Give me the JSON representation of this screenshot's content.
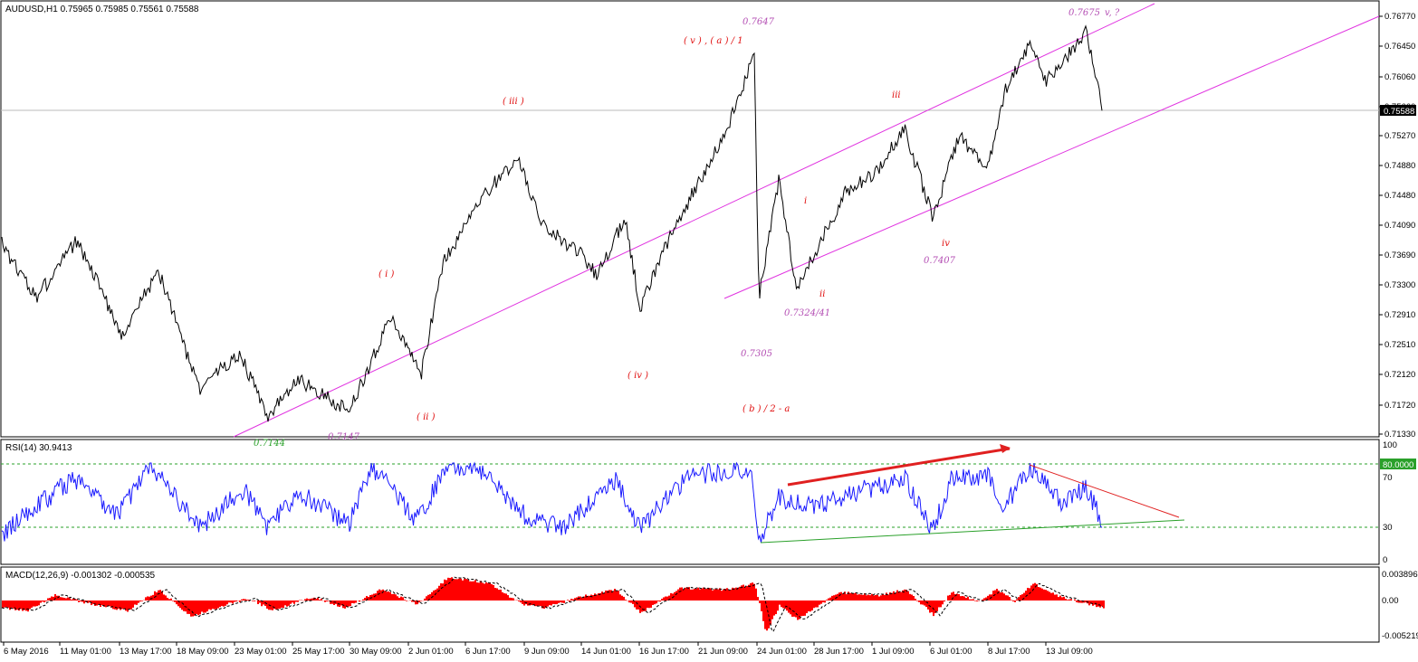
{
  "panels": {
    "price": {
      "title": "AUDUSD,H1  0.75965 0.75985 0.75561 0.75588",
      "current_price": "0.75588",
      "y_ticks": [
        "0.76770",
        "0.76450",
        "0.76060",
        "0.75660",
        "0.75270",
        "0.74880",
        "0.74480",
        "0.74090",
        "0.73690",
        "0.73300",
        "0.72910",
        "0.72510",
        "0.72120",
        "0.71720",
        "0.71330"
      ]
    },
    "rsi": {
      "title": "RSI(14) 30.9413",
      "level_label": "80.0000",
      "y_ticks": [
        "100",
        "70",
        "30",
        "0"
      ]
    },
    "macd": {
      "title": "MACD(12,26,9) -0.001302 -0.000535",
      "y_ticks": [
        "0.003896",
        "0.00",
        "-0.005219"
      ]
    }
  },
  "x_axis": {
    "labels": [
      "6 May 2016",
      "11 May 01:00",
      "13 May 17:00",
      "18 May 09:00",
      "23 May 01:00",
      "25 May 17:00",
      "30 May 09:00",
      "2 Jun 01:00",
      "6 Jun 17:00",
      "9 Jun 09:00",
      "14 Jun 01:00",
      "16 Jun 17:00",
      "21 Jun 09:00",
      "24 Jun 01:00",
      "28 Jun 17:00",
      "1 Jul 09:00",
      "6 Jul 01:00",
      "8 Jul 17:00",
      "13 Jul 09:00"
    ]
  },
  "annotations": {
    "labels": [
      {
        "text": "0.7647",
        "color": "#b44fb4"
      },
      {
        "text": "( v ) , ( a ) / 1",
        "color": "#e01010"
      },
      {
        "text": "( iii )",
        "color": "#e01010"
      },
      {
        "text": "0.7675",
        "color": "#b44fb4"
      },
      {
        "text": "v, ?",
        "color": "#b44fb4"
      },
      {
        "text": "iii",
        "color": "#e01010"
      },
      {
        "text": "i",
        "color": "#e01010"
      },
      {
        "text": "iv",
        "color": "#e01010"
      },
      {
        "text": "0.7407",
        "color": "#b44fb4"
      },
      {
        "text": "ii",
        "color": "#e01010"
      },
      {
        "text": "0.7324/41",
        "color": "#b44fb4"
      },
      {
        "text": "( i )",
        "color": "#e01010"
      },
      {
        "text": "0.7305",
        "color": "#b44fb4"
      },
      {
        "text": "( iv )",
        "color": "#e01010"
      },
      {
        "text": "( b ) / 2 - a",
        "color": "#e01010"
      },
      {
        "text": "( ii )",
        "color": "#e01010"
      },
      {
        "text": "0.7144",
        "color": "#2aa02a"
      },
      {
        "text": "0.7147",
        "color": "#b44fb4"
      }
    ]
  },
  "colors": {
    "price_line": "#000000",
    "channel": "#e033e0",
    "rsi_line": "#1a1aff",
    "rsi_level": "#2aa02a",
    "macd_hist": "#ff0000",
    "divergence_up": "#e02020",
    "trend_down": "#e02020",
    "trend_support": "#2aa02a"
  }
}
